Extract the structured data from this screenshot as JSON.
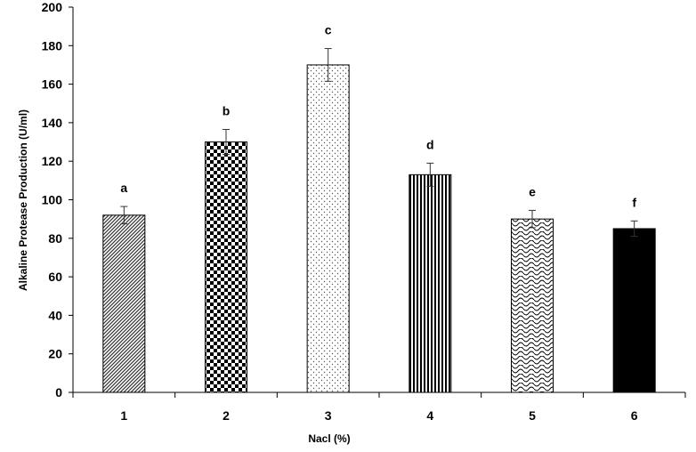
{
  "chart_data": {
    "type": "bar",
    "xlabel": "Nacl (%)",
    "ylabel": "Alkaline Protease Production (U/ml)",
    "ylim": [
      0,
      200
    ],
    "yticks": [
      "0",
      "20",
      "40",
      "60",
      "80",
      "100",
      "120",
      "140",
      "160",
      "180",
      "200"
    ],
    "categories": [
      "1",
      "2",
      "3",
      "4",
      "5",
      "6"
    ],
    "values": [
      92,
      130,
      170,
      113,
      90,
      85
    ],
    "errors": [
      4.5,
      6.5,
      8.5,
      6,
      4.5,
      4
    ],
    "significance_labels": [
      "a",
      "b",
      "c",
      "d",
      "e",
      "f"
    ],
    "patterns": [
      "diagonal-hatch",
      "checkerboard",
      "dots",
      "vertical-lines",
      "waves",
      "solid-black"
    ],
    "grid": false,
    "legend": "none"
  }
}
